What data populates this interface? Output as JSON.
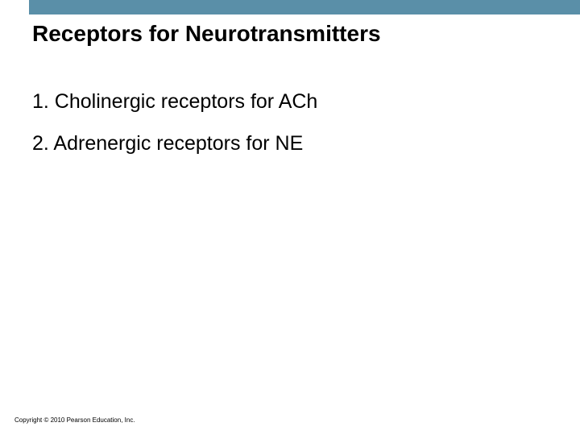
{
  "slide": {
    "title": "Receptors for Neurotransmitters",
    "items": [
      "1. Cholinergic receptors for ACh",
      "2. Adrenergic receptors for NE"
    ],
    "copyright": "Copyright © 2010 Pearson Education, Inc."
  },
  "styles": {
    "header_bar_color": "#5a8fa8",
    "background_color": "#ffffff",
    "title_fontsize": 28,
    "title_color": "#000000",
    "body_fontsize": 25,
    "body_color": "#000000",
    "copyright_fontsize": 8
  }
}
